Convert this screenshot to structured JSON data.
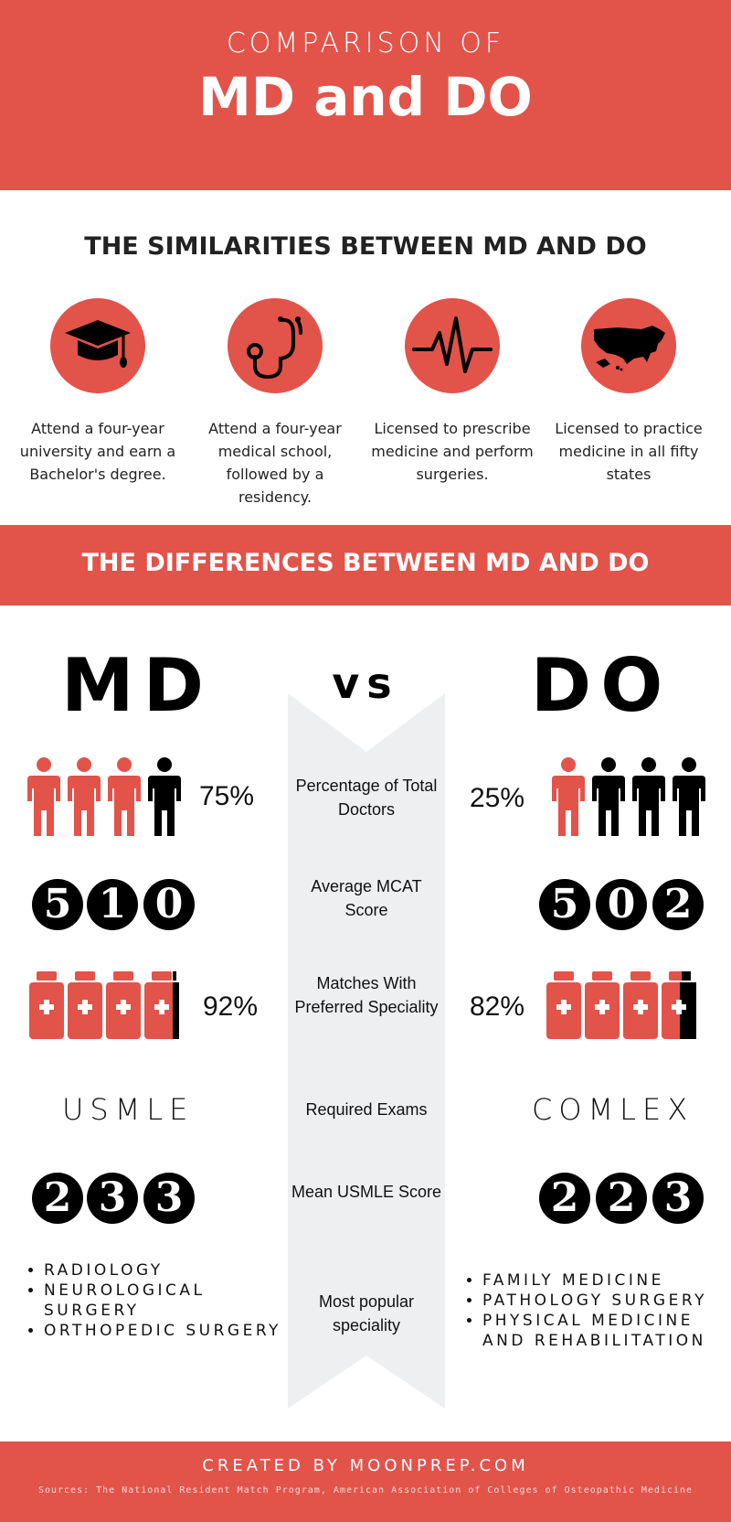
{
  "header": {
    "subtitle": "COMPARISON OF",
    "title": "MD and DO"
  },
  "similarities": {
    "heading": "THE SIMILARITIES BETWEEN MD AND DO",
    "items": [
      {
        "icon": "graduation-cap-icon",
        "text": "Attend a four-year university and earn a Bachelor's degree."
      },
      {
        "icon": "stethoscope-icon",
        "text": "Attend a four-year medical school, followed by a residency."
      },
      {
        "icon": "heartbeat-icon",
        "text": "Licensed to prescribe medicine and perform surgeries."
      },
      {
        "icon": "usa-map-icon",
        "text": "Licensed to practice medicine in all fifty states"
      }
    ]
  },
  "differences": {
    "heading": "THE DIFFERENCES BETWEEN MD AND DO",
    "left_label": "MD",
    "vs_label": "vs",
    "right_label": "DO",
    "rows": {
      "doctors": {
        "label": "Percentage of Total Doctors",
        "md": "75%",
        "do": "25%",
        "md_fraction": 0.75,
        "do_fraction": 0.25
      },
      "mcat": {
        "label": "Average MCAT Score",
        "md": "510",
        "do": "502",
        "md_digits": [
          "5",
          "1",
          "0"
        ],
        "do_digits": [
          "5",
          "0",
          "2"
        ]
      },
      "matches": {
        "label": "Matches With Preferred Speciality",
        "md": "92%",
        "do": "82%",
        "md_fraction": 0.92,
        "do_fraction": 0.82
      },
      "exams": {
        "label": "Required Exams",
        "md": "USMLE",
        "do": "COMLEX"
      },
      "usmle": {
        "label": "Mean USMLE Score",
        "md": "233",
        "do": "223",
        "md_digits": [
          "2",
          "3",
          "3"
        ],
        "do_digits": [
          "2",
          "2",
          "3"
        ]
      },
      "speciality": {
        "label": "Most popular speciality",
        "md": [
          "RADIOLOGY",
          "NEUROLOGICAL SURGERY",
          "ORTHOPEDIC SURGERY"
        ],
        "do": [
          "FAMILY MEDICINE",
          "PATHOLOGY SURGERY",
          "PHYSICAL MEDICINE AND REHABILITATION"
        ]
      }
    }
  },
  "footer": {
    "created": "CREATED BY MOONPREP.COM",
    "sources": "Sources: The National Resident Match Program, American Association of Colleges of Osteopathic Medicine"
  },
  "colors": {
    "accent": "#e2534a",
    "ribbon": "#eeeff1",
    "icon": "#000000"
  }
}
